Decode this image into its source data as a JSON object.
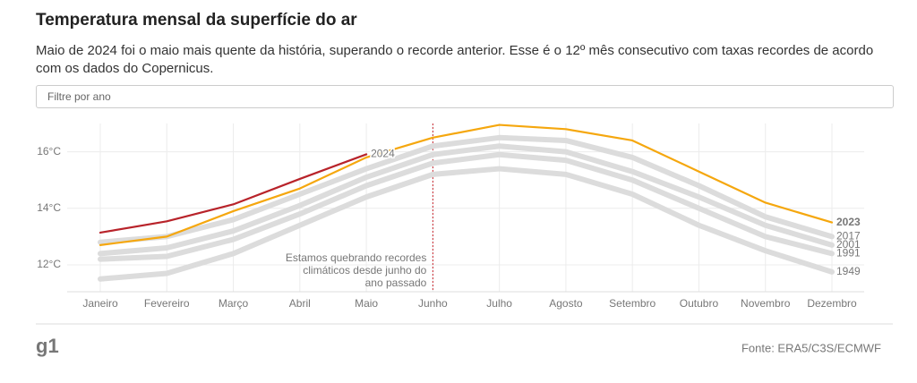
{
  "chart_data": {
    "type": "line",
    "title": "Temperatura mensal da superfície do ar",
    "subtitle": "Maio de 2024 foi o maio mais quente da história, superando o recorde anterior. Esse é o 12º mês consecutivo com taxas recordes de acordo com os dados do Copernicus.",
    "filter_placeholder": "Filtre por ano",
    "categories": [
      "Janeiro",
      "Fevereiro",
      "Março",
      "Abril",
      "Maio",
      "Junho",
      "Julho",
      "Agosto",
      "Setembro",
      "Outubro",
      "Novembro",
      "Dezembro"
    ],
    "series": [
      {
        "name": "1949",
        "color": "#dcdcdc",
        "values": [
          11.5,
          11.7,
          12.4,
          13.4,
          14.4,
          15.2,
          15.4,
          15.2,
          14.5,
          13.4,
          12.5,
          11.75
        ]
      },
      {
        "name": "1991",
        "color": "#dcdcdc",
        "values": [
          12.2,
          12.3,
          12.9,
          13.8,
          14.8,
          15.6,
          15.9,
          15.7,
          15.0,
          14.0,
          13.0,
          12.4
        ]
      },
      {
        "name": "2001",
        "color": "#dcdcdc",
        "values": [
          12.4,
          12.6,
          13.2,
          14.1,
          15.1,
          15.9,
          16.2,
          16.0,
          15.3,
          14.4,
          13.4,
          12.7
        ]
      },
      {
        "name": "2017",
        "color": "#dcdcdc",
        "values": [
          12.8,
          13.0,
          13.6,
          14.5,
          15.4,
          16.2,
          16.5,
          16.4,
          15.8,
          14.8,
          13.7,
          13.0
        ]
      },
      {
        "name": "2023",
        "color": "#f5a70e",
        "values": [
          12.7,
          13.0,
          13.9,
          14.7,
          15.8,
          16.5,
          16.95,
          16.8,
          16.4,
          15.3,
          14.2,
          13.5
        ]
      },
      {
        "name": "2024",
        "color": "#b8232a",
        "values": [
          13.14,
          13.54,
          14.14,
          15.04,
          15.91,
          null,
          null,
          null,
          null,
          null,
          null,
          null
        ]
      }
    ],
    "ylim": [
      11.05,
      17.0
    ],
    "yticks": [
      {
        "value": 12,
        "label": "12°C"
      },
      {
        "value": 14,
        "label": "14°C"
      },
      {
        "value": 16,
        "label": "16°C"
      }
    ],
    "grid": true,
    "annotation": [
      "Estamos quebrando recordes",
      "climáticos desde junho do",
      "ano passado"
    ],
    "annotation_color": "#c8262e",
    "logo": "g1",
    "source": "Fonte: ERA5/C3S/ECMWF"
  }
}
